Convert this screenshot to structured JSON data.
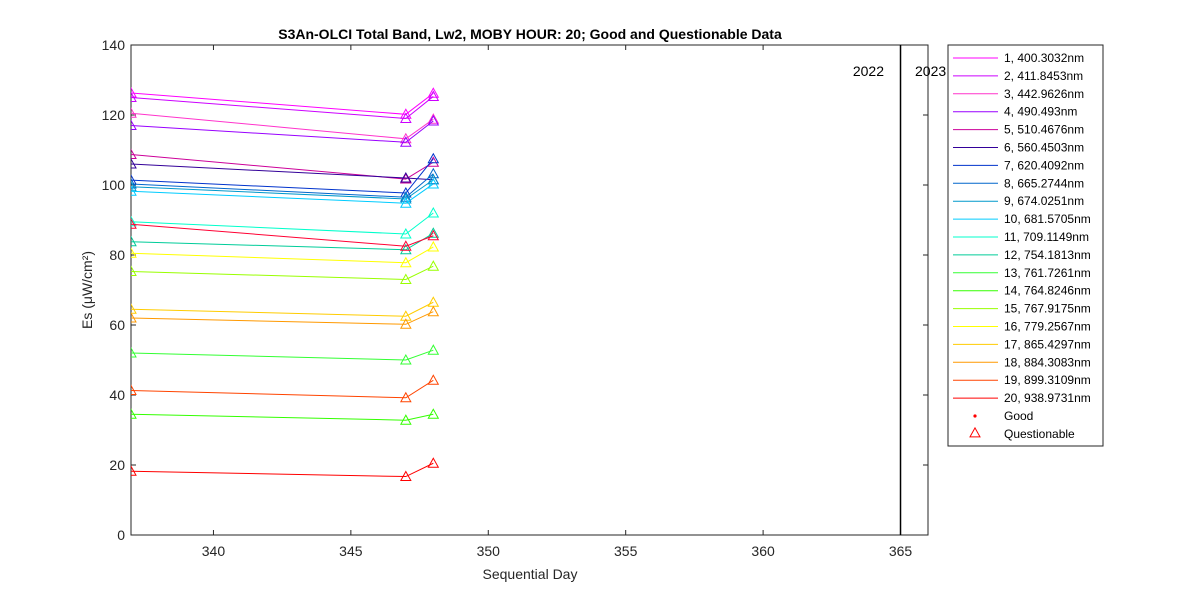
{
  "chart_data": {
    "type": "line",
    "title": "S3An-OLCI Total Band,  Lw2, MOBY HOUR: 20;  Good and Questionable Data",
    "xlabel": "Sequential Day",
    "ylabel": "Es (μW/cm²)",
    "xlim": [
      337,
      366
    ],
    "ylim": [
      0,
      140
    ],
    "xticks": [
      340,
      345,
      350,
      355,
      360,
      365
    ],
    "yticks": [
      0,
      20,
      40,
      60,
      80,
      100,
      120,
      140
    ],
    "grid": false,
    "legend_position": "outside-right",
    "x": [
      337,
      347,
      348
    ],
    "series": [
      {
        "name": "1, 400.3032nm",
        "color": "#FF00FF",
        "values": [
          126.3,
          120.2,
          126.2
        ]
      },
      {
        "name": "2, 411.8453nm",
        "color": "#CC00FF",
        "values": [
          125.0,
          119.0,
          125.3
        ]
      },
      {
        "name": "3, 442.9626nm",
        "color": "#FF33CC",
        "values": [
          120.5,
          113.2,
          118.8
        ]
      },
      {
        "name": "4,  490.493nm",
        "color": "#9900FF",
        "values": [
          117.0,
          112.2,
          118.3
        ]
      },
      {
        "name": "5, 510.4676nm",
        "color": "#CC0099",
        "values": [
          108.7,
          101.7,
          106.5
        ]
      },
      {
        "name": "6, 560.4503nm",
        "color": "#330099",
        "values": [
          106.0,
          102.0,
          101.5
        ]
      },
      {
        "name": "7, 620.4092nm",
        "color": "#0033CC",
        "values": [
          101.4,
          97.7,
          107.5
        ]
      },
      {
        "name": "8, 665.2744nm",
        "color": "#0066CC",
        "values": [
          100.3,
          96.5,
          103.2
        ]
      },
      {
        "name": "9, 674.0251nm",
        "color": "#0099CC",
        "values": [
          99.5,
          96.0,
          101.5
        ]
      },
      {
        "name": "10, 681.5705nm",
        "color": "#00CCFF",
        "values": [
          98.2,
          94.8,
          100.3
        ]
      },
      {
        "name": "11, 709.1149nm",
        "color": "#00FFCC",
        "values": [
          89.5,
          86.0,
          92.0
        ]
      },
      {
        "name": "12, 754.1813nm",
        "color": "#00CC99",
        "values": [
          83.8,
          81.5,
          86.2
        ]
      },
      {
        "name": "13, 761.7261nm",
        "color": "#33FF33",
        "values": [
          52.0,
          50.0,
          52.8
        ]
      },
      {
        "name": "14, 764.8246nm",
        "color": "#33FF00",
        "values": [
          34.5,
          32.8,
          34.5
        ]
      },
      {
        "name": "15, 767.9175nm",
        "color": "#99FF00",
        "values": [
          75.3,
          73.0,
          76.8
        ]
      },
      {
        "name": "16, 779.2567nm",
        "color": "#FFFF00",
        "values": [
          80.5,
          77.8,
          82.3
        ]
      },
      {
        "name": "17, 865.4297nm",
        "color": "#FFCC00",
        "values": [
          64.5,
          62.5,
          66.5
        ]
      },
      {
        "name": "18, 884.3083nm",
        "color": "#FF9900",
        "values": [
          62.0,
          60.2,
          63.8
        ]
      },
      {
        "name": "19, 899.3109nm",
        "color": "#FF4400",
        "values": [
          41.3,
          39.2,
          44.2
        ]
      },
      {
        "name": "20, 938.9731nm",
        "color": "#FF0000",
        "values": [
          18.2,
          16.7,
          20.5
        ]
      },
      {
        "name": "",
        "color": "#FF0033",
        "values": [
          88.8,
          82.5,
          85.5
        ]
      }
    ],
    "markers": "Questionable",
    "legend_extra": [
      {
        "label": "Good",
        "symbol": "dot",
        "color": "#FF0000"
      },
      {
        "label": "Questionable",
        "symbol": "triangle",
        "color": "#FF0000"
      }
    ],
    "year_boundary": {
      "x": 365,
      "left_label": "2022",
      "right_label": "2023"
    }
  }
}
